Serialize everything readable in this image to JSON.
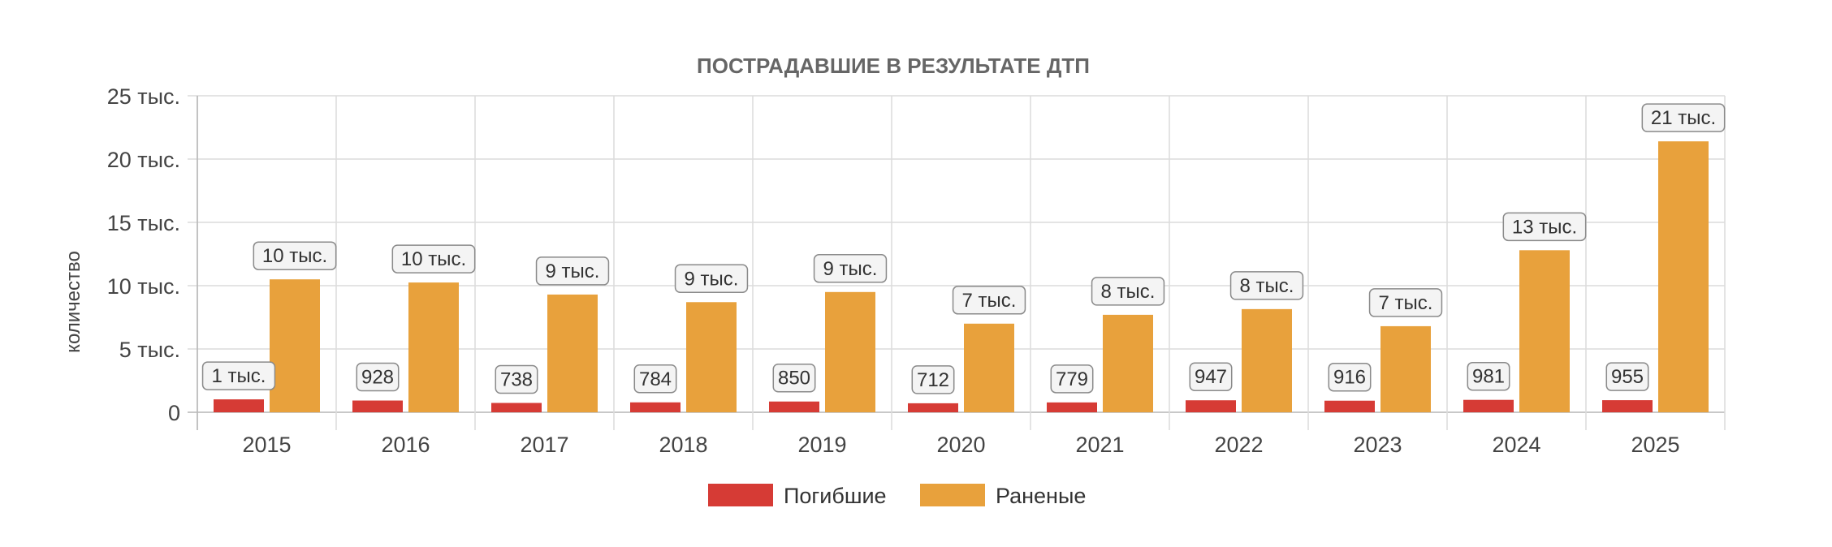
{
  "chart_data": {
    "type": "bar",
    "title": "ПОСТРАДАВШИЕ В РЕЗУЛЬТАТЕ ДТП",
    "ylabel": "количество",
    "xlabel": "",
    "categories": [
      "2015",
      "2016",
      "2017",
      "2018",
      "2019",
      "2020",
      "2021",
      "2022",
      "2023",
      "2024",
      "2025"
    ],
    "ylim": [
      0,
      25000
    ],
    "yticks": [
      0,
      5000,
      10000,
      15000,
      20000,
      25000
    ],
    "ytick_labels": [
      "0",
      "5 тыс.",
      "10 тыс.",
      "15 тыс.",
      "20 тыс.",
      "25 тыс."
    ],
    "grid": true,
    "legend_position": "bottom",
    "series": [
      {
        "name": "Погибшие",
        "color": "#d63b35",
        "values": [
          1020,
          928,
          738,
          784,
          850,
          712,
          779,
          947,
          916,
          981,
          955
        ],
        "labels": [
          "1 тыс.",
          "928",
          "738",
          "784",
          "850",
          "712",
          "779",
          "947",
          "916",
          "981",
          "955"
        ]
      },
      {
        "name": "Раненые",
        "color": "#e8a13c",
        "values": [
          10500,
          10250,
          9300,
          8700,
          9500,
          7000,
          7700,
          8150,
          6800,
          12800,
          21400
        ],
        "labels": [
          "10 тыс.",
          "10 тыс.",
          "9 тыс.",
          "9 тыс.",
          "9 тыс.",
          "7 тыс.",
          "8 тыс.",
          "8 тыс.",
          "7 тыс.",
          "13 тыс.",
          "21 тыс."
        ]
      }
    ]
  }
}
